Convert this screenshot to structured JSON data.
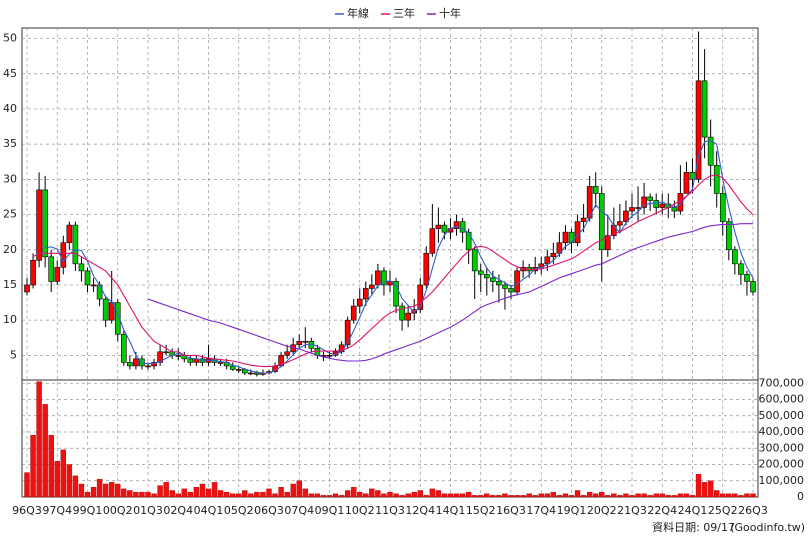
{
  "chart_data": {
    "type": "candlestick",
    "legend": "top",
    "grid": true,
    "up_color": "#ff0000",
    "down_color": "#00cc00",
    "annotations": [
      "資料日期: 09/17",
      "(Goodinfo.tw)"
    ],
    "categories": [
      "96Q3",
      null,
      null,
      null,
      null,
      "97Q4",
      null,
      null,
      null,
      null,
      "99Q1",
      null,
      null,
      null,
      null,
      "00Q2",
      null,
      null,
      null,
      null,
      "01Q3",
      null,
      null,
      null,
      null,
      "02Q4",
      null,
      null,
      null,
      null,
      "04Q1",
      null,
      null,
      null,
      null,
      "05Q2",
      null,
      null,
      null,
      null,
      "06Q3",
      null,
      null,
      null,
      null,
      "07Q4",
      null,
      null,
      null,
      null,
      "09Q1",
      null,
      null,
      null,
      null,
      "10Q2",
      null,
      null,
      null,
      null,
      "11Q3",
      null,
      null,
      null,
      null,
      "12Q4",
      null,
      null,
      null,
      null,
      "14Q1",
      null,
      null,
      null,
      null,
      "15Q2",
      null,
      null,
      null,
      null,
      "16Q3",
      null,
      null,
      null,
      null,
      "17Q4",
      null,
      null,
      null,
      null,
      "19Q1",
      null,
      null,
      null,
      null,
      "20Q2",
      null,
      null,
      null,
      null,
      "21Q3",
      null,
      null,
      null,
      null,
      "22Q4",
      null,
      null,
      null,
      null,
      "24Q1",
      null,
      null,
      null,
      null,
      "25Q2",
      null,
      null,
      null,
      null,
      "26Q3"
    ],
    "open": [
      14,
      15,
      18.5,
      28.5,
      19,
      15.5,
      17.5,
      21,
      23.5,
      18,
      17,
      15,
      15,
      13,
      10,
      12.5,
      8,
      4,
      3.5,
      4.5,
      3.5,
      3.5,
      4,
      5.5,
      5.5,
      5,
      5,
      4.5,
      4,
      4.5,
      4,
      4.5,
      4,
      4,
      3.5,
      3,
      3,
      2.5,
      2.5,
      2.3,
      2.5,
      2.7,
      3.5,
      5,
      5.5,
      6.5,
      7,
      7,
      6,
      5,
      5,
      5,
      5.5,
      6.5,
      10,
      12,
      13,
      14.5,
      15,
      17,
      15,
      15.5,
      12,
      10,
      11,
      11.5,
      15,
      19.5,
      23,
      23.5,
      22.5,
      23,
      24,
      22.5,
      20,
      17,
      16.5,
      16,
      15.5,
      15,
      14.5,
      14,
      17,
      17.5,
      17,
      17.5,
      18,
      19,
      19.5,
      21,
      22.5,
      21,
      24,
      24.5,
      29,
      28,
      20,
      22,
      23.5,
      24,
      25.5,
      26,
      26,
      27.5,
      27,
      26,
      26.5,
      26,
      25.5,
      28,
      31,
      30,
      44,
      36,
      32,
      28,
      24,
      20,
      18,
      16.5,
      15.5
    ],
    "high": [
      16,
      19.5,
      31,
      30.5,
      20,
      18.5,
      22,
      24,
      24,
      19,
      17.5,
      16,
      15.5,
      13.5,
      17,
      13,
      8.5,
      5,
      5.5,
      5,
      4,
      4.5,
      6.5,
      6.5,
      6,
      6,
      5.5,
      5,
      5,
      5,
      6.5,
      5,
      4.5,
      4.5,
      4,
      3.5,
      3.2,
      3,
      2.8,
      3,
      3,
      4,
      5.5,
      6.5,
      7.5,
      8,
      9,
      7.5,
      6.5,
      5.5,
      5.5,
      6,
      7,
      10.5,
      13,
      14.5,
      15.5,
      16.5,
      18,
      17.5,
      17,
      16,
      12.5,
      12,
      13,
      16,
      20.5,
      26.5,
      26,
      24,
      24.5,
      25,
      24.5,
      23,
      20.5,
      18,
      17.5,
      17,
      16.5,
      15.5,
      15,
      17.5,
      18.5,
      18,
      19,
      19,
      20,
      21,
      22.5,
      23.5,
      23,
      25,
      26.5,
      30.5,
      31,
      29,
      25,
      26,
      26.5,
      27,
      28,
      29,
      29.5,
      28,
      28,
      28,
      28,
      27,
      32,
      32.5,
      33,
      51,
      48.5,
      38.5,
      34,
      29,
      24.5,
      20.5,
      18.5,
      17,
      16
    ],
    "low": [
      13.5,
      14.5,
      17.5,
      17.5,
      14,
      15,
      16.5,
      20,
      17,
      15.5,
      14,
      14,
      12,
      9,
      9.5,
      7,
      3.5,
      3,
      3,
      3,
      3,
      3,
      3.5,
      5,
      4.5,
      4.3,
      4,
      3.5,
      3.5,
      3.5,
      3.5,
      3.5,
      3.5,
      3,
      2.8,
      2.5,
      2.2,
      2.2,
      2,
      2.1,
      2.3,
      2.5,
      3.3,
      4.5,
      5,
      6,
      6,
      5.5,
      4.5,
      4.2,
      4.5,
      4.8,
      5.2,
      6,
      9.5,
      11,
      12,
      13.5,
      14.5,
      13.5,
      14,
      11,
      8.5,
      9,
      10,
      11,
      14.5,
      19,
      21,
      21.5,
      21.5,
      22,
      21,
      18,
      13,
      14,
      13.5,
      14,
      12.5,
      11.5,
      13,
      13.5,
      16,
      16,
      16.5,
      16.5,
      17,
      18,
      19,
      20,
      19.5,
      20.5,
      22.5,
      24,
      26,
      15.5,
      19,
      21.5,
      22.5,
      23.5,
      24.5,
      24,
      25,
      25.5,
      25,
      25,
      24.5,
      24.5,
      25,
      28,
      28,
      29.5,
      33,
      29,
      26,
      22,
      18.5,
      16.5,
      15,
      13.5,
      13.5
    ],
    "close": [
      15,
      18.5,
      28.5,
      19,
      15.5,
      17.5,
      21,
      23.5,
      18,
      17,
      15,
      15,
      13,
      10,
      12.5,
      8,
      4,
      3.5,
      4.5,
      3.5,
      3.5,
      4,
      5.5,
      5.5,
      5,
      5,
      4.5,
      4,
      4.5,
      4,
      4.5,
      4,
      4,
      3.5,
      3,
      3,
      2.5,
      2.5,
      2.3,
      2.5,
      2.7,
      3.5,
      5,
      5.5,
      6.5,
      7,
      7,
      6,
      5,
      5,
      5,
      5.5,
      6.5,
      10,
      12,
      13,
      14.5,
      15,
      17,
      15,
      15.5,
      12,
      10,
      11,
      11.5,
      15,
      19.5,
      23,
      23.5,
      22.5,
      23,
      24,
      22.5,
      20,
      17,
      16.5,
      16,
      15.5,
      15,
      14.5,
      14,
      17,
      17.5,
      17,
      17.5,
      18,
      19,
      19.5,
      21,
      22.5,
      21,
      24,
      24.5,
      29,
      28,
      20,
      22,
      23.5,
      24,
      25.5,
      26,
      26,
      27.5,
      27,
      26,
      26.5,
      26,
      25.5,
      28,
      31,
      30,
      44,
      36,
      32,
      28,
      24,
      20,
      18,
      16.5,
      15.5,
      14
    ],
    "ylim": [
      1.5,
      51.5
    ],
    "yticks": [
      5,
      10,
      15,
      20,
      25,
      30,
      35,
      40,
      45,
      50
    ],
    "series": [
      {
        "name": "年線",
        "color": "#2f5fd0",
        "values": [
          null,
          null,
          null,
          20.3,
          20.4,
          20.1,
          18.3,
          19.4,
          20,
          19.9,
          18.4,
          16.3,
          15,
          13.3,
          12.6,
          10.9,
          8.6,
          7,
          5,
          3.9,
          3.8,
          3.9,
          4.1,
          4.6,
          5,
          5.3,
          5,
          4.6,
          4.5,
          4.3,
          4.3,
          4.3,
          4.1,
          4,
          3.6,
          3.4,
          3,
          2.8,
          2.6,
          2.5,
          2.5,
          2.8,
          3.4,
          4.2,
          5.1,
          6,
          6.5,
          6.6,
          6.3,
          5.8,
          5.3,
          5.1,
          5.5,
          6.8,
          8.5,
          10.4,
          12.4,
          13.6,
          14.9,
          15.4,
          15.6,
          14.9,
          13.1,
          12.1,
          11.1,
          11.9,
          14.3,
          17.3,
          20.3,
          22.1,
          23,
          23.3,
          23,
          22.4,
          20.9,
          19,
          17.4,
          16.3,
          15.8,
          15.3,
          14.8,
          15.1,
          15.8,
          16.4,
          17.3,
          17.5,
          17.9,
          18.5,
          19.4,
          20.5,
          21,
          22.1,
          23,
          24.6,
          26.4,
          25.4,
          24.8,
          23.4,
          22.4,
          23.8,
          24.8,
          25.4,
          26.3,
          26.6,
          26.6,
          26.8,
          26.4,
          26,
          26.5,
          27.6,
          28.6,
          33.3,
          35.3,
          35.5,
          35,
          30,
          26,
          22.5,
          19.6,
          17.5,
          16
        ]
      },
      {
        "name": "三年",
        "color": "#e0106e",
        "values": [
          null,
          19,
          19.5,
          19.5,
          19.5,
          19.5,
          19.5,
          19.5,
          19.5,
          19,
          18.5,
          18,
          17.5,
          17,
          16,
          15,
          13.5,
          12,
          10.5,
          9,
          8,
          7,
          6.5,
          6,
          5.5,
          5.5,
          5,
          5,
          5,
          4.8,
          4.6,
          4.5,
          4.4,
          4.3,
          4.2,
          4,
          3.8,
          3.6,
          3.5,
          3.4,
          3.4,
          3.5,
          3.7,
          4,
          4.4,
          4.8,
          5.2,
          5.5,
          5.6,
          5.6,
          5.6,
          5.6,
          5.7,
          6,
          6.5,
          7.2,
          8,
          8.8,
          9.6,
          10.4,
          11,
          11.4,
          11.6,
          11.8,
          12,
          12.5,
          13.2,
          14,
          15,
          16,
          17,
          18,
          19,
          19.8,
          20.3,
          20.5,
          20.3,
          19.8,
          19.2,
          18.6,
          18,
          17.6,
          17.3,
          17.2,
          17.2,
          17.3,
          17.5,
          17.8,
          18.1,
          18.4,
          18.7,
          19.2,
          19.8,
          20.4,
          21,
          21.4,
          21.8,
          22.2,
          22.6,
          23,
          23.5,
          24,
          24.4,
          24.8,
          25.2,
          25.6,
          26,
          26.5,
          27,
          27.6,
          28.3,
          29.2,
          30,
          30.5,
          30.6,
          30.2,
          29.2,
          28,
          26.8,
          25.8,
          25
        ]
      },
      {
        "name": "十年",
        "color": "#7a28c8",
        "values": [
          null,
          null,
          null,
          null,
          null,
          null,
          null,
          null,
          null,
          null,
          null,
          null,
          null,
          null,
          null,
          null,
          null,
          null,
          null,
          null,
          13,
          12.7,
          12.4,
          12.1,
          11.8,
          11.5,
          11.2,
          10.9,
          10.6,
          10.3,
          10,
          9.8,
          9.6,
          9.3,
          9,
          8.7,
          8.4,
          8.1,
          7.8,
          7.5,
          7.2,
          6.9,
          6.6,
          6.3,
          6.1,
          5.9,
          5.6,
          5.3,
          5,
          4.8,
          4.6,
          4.4,
          4.3,
          4.2,
          4.2,
          4.2,
          4.3,
          4.5,
          4.8,
          5.2,
          5.5,
          5.8,
          6.1,
          6.4,
          6.7,
          7,
          7.4,
          7.8,
          8.2,
          8.6,
          9,
          9.5,
          10,
          10.6,
          11.2,
          11.8,
          12.2,
          12.5,
          12.8,
          13.1,
          13.4,
          13.6,
          13.8,
          14,
          14.4,
          14.8,
          15.2,
          15.6,
          16,
          16.3,
          16.6,
          16.9,
          17.2,
          17.5,
          17.8,
          18,
          18.4,
          18.8,
          19.2,
          19.6,
          20,
          20.3,
          20.6,
          20.9,
          21.2,
          21.5,
          21.8,
          22,
          22.2,
          22.4,
          22.6,
          22.9,
          23.2,
          23.4,
          23.5,
          23.6,
          23.6,
          23.6,
          23.7,
          23.7,
          23.7
        ]
      }
    ],
    "volume": {
      "color": "#ee1111",
      "ylim": [
        0,
        720000
      ],
      "yticks": [
        0,
        {
          "value": 100000,
          "label": "100,000"
        },
        {
          "value": 200000,
          "label": "200,000"
        },
        {
          "value": 300000,
          "label": "300,000"
        },
        {
          "value": 400000,
          "label": "400,000"
        },
        {
          "value": 500000,
          "label": "500,000"
        },
        {
          "value": 600000,
          "label": "600,000"
        },
        {
          "value": 700000,
          "label": "700,000"
        }
      ],
      "values": [
        150000,
        380000,
        710000,
        570000,
        380000,
        220000,
        290000,
        200000,
        130000,
        80000,
        30000,
        60000,
        110000,
        80000,
        90000,
        80000,
        50000,
        40000,
        30000,
        30000,
        30000,
        20000,
        70000,
        90000,
        40000,
        20000,
        50000,
        30000,
        60000,
        80000,
        50000,
        90000,
        40000,
        30000,
        20000,
        20000,
        40000,
        20000,
        30000,
        30000,
        50000,
        20000,
        60000,
        30000,
        80000,
        100000,
        50000,
        20000,
        20000,
        10000,
        10000,
        20000,
        10000,
        40000,
        60000,
        30000,
        20000,
        50000,
        40000,
        20000,
        30000,
        20000,
        10000,
        20000,
        30000,
        40000,
        10000,
        50000,
        40000,
        20000,
        20000,
        20000,
        20000,
        30000,
        10000,
        10000,
        20000,
        10000,
        10000,
        20000,
        10000,
        10000,
        10000,
        20000,
        10000,
        20000,
        20000,
        30000,
        10000,
        20000,
        10000,
        40000,
        10000,
        30000,
        20000,
        30000,
        10000,
        20000,
        10000,
        20000,
        10000,
        20000,
        20000,
        10000,
        20000,
        20000,
        10000,
        10000,
        20000,
        20000,
        10000,
        140000,
        90000,
        100000,
        40000,
        20000,
        20000,
        20000,
        10000,
        20000,
        20000
      ]
    }
  }
}
